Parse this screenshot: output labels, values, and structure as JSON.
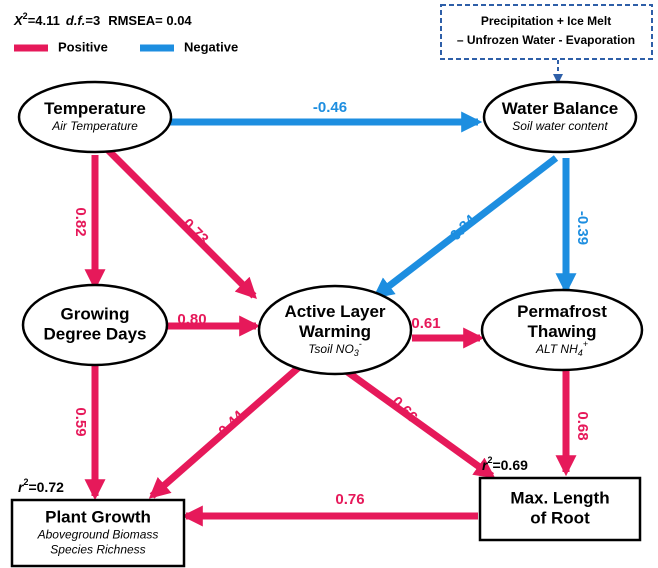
{
  "fit": {
    "chi": "X",
    "chi_sup": "2",
    "chi_value": "=4.11",
    "df": "d.f.",
    "df_value": "=3",
    "rmsea": "RMSEA= 0.04"
  },
  "legend": [
    {
      "label": "Positive",
      "color": "#e6195a"
    },
    {
      "label": "Negative",
      "color": "#1d8ee0"
    }
  ],
  "note": [
    "Precipitation + Ice Melt",
    "– Unfrozen Water - Evaporation"
  ],
  "nodes": [
    {
      "title": [
        "Temperature"
      ],
      "subtitle": [
        {
          "text": "Air Temperature"
        }
      ]
    },
    {
      "title": [
        "Water Balance"
      ],
      "subtitle": [
        {
          "text": "Soil water content"
        }
      ]
    },
    {
      "title": [
        "Growing",
        "Degree Days"
      ],
      "subtitle": []
    },
    {
      "title": [
        "Active Layer",
        "Warming"
      ],
      "subtitle": [
        {
          "text": "Tsoil  NO"
        },
        {
          "text": "3",
          "shift": "sub"
        },
        {
          "text": "-",
          "shift": "super"
        }
      ]
    },
    {
      "title": [
        "Permafrost",
        "Thawing"
      ],
      "subtitle": [
        {
          "text": "ALT  NH"
        },
        {
          "text": "4",
          "shift": "sub"
        },
        {
          "text": "+",
          "shift": "super"
        }
      ]
    },
    {
      "title": [
        "Plant Growth"
      ],
      "subtitle": [
        {
          "text": "Aboveground Biomass"
        },
        {
          "text": "Species Richness"
        }
      ]
    },
    {
      "title": [
        "Max. Length",
        "of Root"
      ],
      "subtitle": []
    }
  ],
  "r2": [
    {
      "base": "r",
      "sup": "2",
      "value": "=0.72"
    },
    {
      "base": "r",
      "sup": "2",
      "value": "=0.69"
    }
  ],
  "edges": [
    {
      "label": "-0.46",
      "sign": "negative"
    },
    {
      "label": "0.82",
      "sign": "positive"
    },
    {
      "label": "0.73",
      "sign": "positive"
    },
    {
      "label": "-0.34",
      "sign": "negative"
    },
    {
      "label": "-0.39",
      "sign": "negative"
    },
    {
      "label": "0.80",
      "sign": "positive"
    },
    {
      "label": "0.61",
      "sign": "positive"
    },
    {
      "label": "0.59",
      "sign": "positive"
    },
    {
      "label": "0.44",
      "sign": "positive"
    },
    {
      "label": "0.66",
      "sign": "positive"
    },
    {
      "label": "0.68",
      "sign": "positive"
    },
    {
      "label": "0.76",
      "sign": "positive"
    }
  ]
}
